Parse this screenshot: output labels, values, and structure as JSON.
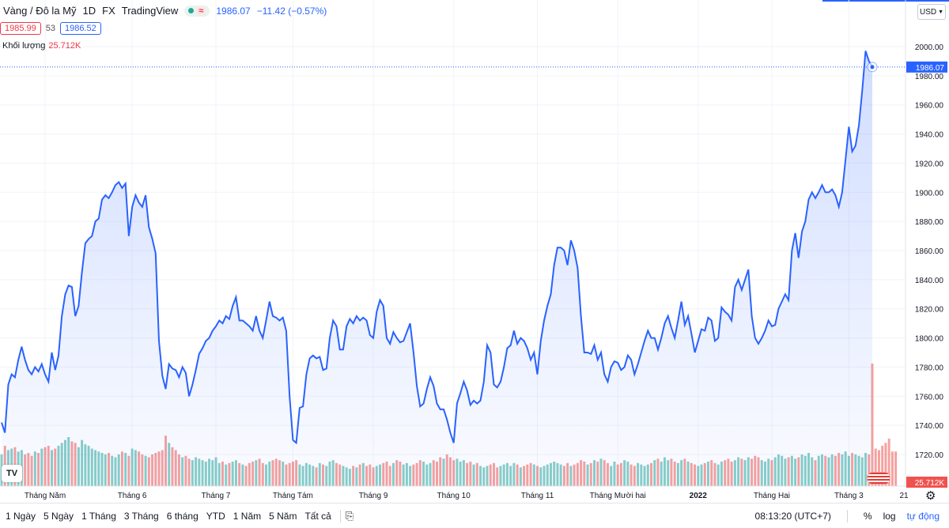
{
  "legend": {
    "symbol": "Vàng / Đô la Mỹ",
    "interval": "1D",
    "exchange": "FX",
    "source": "TradingView",
    "approx_symbol": "≈",
    "last_price": "1986.07",
    "change": "−11.42 (−0.57%)"
  },
  "quotes": {
    "bid": "1985.99",
    "spread": "53",
    "ask": "1986.52"
  },
  "volume": {
    "label": "Khối lượng",
    "value": "25.712K"
  },
  "currency": "USD",
  "logo_text": "TV",
  "bottom": {
    "ranges": [
      "1 Ngày",
      "5 Ngày",
      "1 Tháng",
      "3 Tháng",
      "6 tháng",
      "YTD",
      "1 Năm",
      "5 Năm",
      "Tất cả"
    ],
    "time": "08:13:20 (UTC+7)",
    "percent": "%",
    "log": "log",
    "auto": "tự động"
  },
  "colors": {
    "line": "#2962ff",
    "up": "#26a69a",
    "down": "#ef5350",
    "grid": "#f0f3fa"
  },
  "chart_data": {
    "type": "area",
    "title": "",
    "ylim": [
      1720,
      2020
    ],
    "yticks": [
      1720,
      1740,
      1760,
      1780,
      1800,
      1820,
      1840,
      1860,
      1880,
      1900,
      1920,
      1940,
      1960,
      1980,
      2000
    ],
    "last_price_label": "1986.07",
    "volume_label": "25.712K",
    "xtick_labels": [
      "Tháng Năm",
      "Tháng 6",
      "Tháng 7",
      "Tháng Tám",
      "Tháng 9",
      "Tháng 10",
      "Tháng 11",
      "Tháng Mười hai",
      "2022",
      "Tháng Hai",
      "Tháng 3",
      "21"
    ],
    "xtick_index": [
      13,
      39,
      64,
      87,
      111,
      135,
      160,
      184,
      208,
      230,
      253,
      272
    ],
    "series": [
      {
        "values": [
          1742,
          1735,
          1768,
          1775,
          1773,
          1785,
          1794,
          1785,
          1778,
          1775,
          1780,
          1777,
          1782,
          1775,
          1770,
          1790,
          1778,
          1788,
          1815,
          1830,
          1836,
          1835,
          1815,
          1822,
          1845,
          1865,
          1868,
          1870,
          1880,
          1882,
          1895,
          1898,
          1896,
          1900,
          1905,
          1907,
          1903,
          1906,
          1870,
          1890,
          1898,
          1893,
          1890,
          1898,
          1876,
          1868,
          1858,
          1798,
          1774,
          1765,
          1782,
          1779,
          1778,
          1773,
          1780,
          1776,
          1760,
          1768,
          1778,
          1789,
          1793,
          1798,
          1800,
          1805,
          1808,
          1812,
          1810,
          1815,
          1813,
          1822,
          1828,
          1812,
          1812,
          1810,
          1808,
          1805,
          1815,
          1805,
          1800,
          1812,
          1825,
          1815,
          1814,
          1812,
          1814,
          1805,
          1760,
          1730,
          1728,
          1752,
          1753,
          1775,
          1786,
          1788,
          1786,
          1787,
          1778,
          1779,
          1800,
          1812,
          1808,
          1792,
          1792,
          1808,
          1813,
          1810,
          1815,
          1812,
          1814,
          1812,
          1802,
          1800,
          1818,
          1826,
          1822,
          1800,
          1796,
          1804,
          1800,
          1797,
          1798,
          1804,
          1810,
          1790,
          1767,
          1753,
          1755,
          1765,
          1773,
          1767,
          1755,
          1751,
          1751,
          1744,
          1735,
          1728,
          1755,
          1762,
          1770,
          1764,
          1754,
          1757,
          1755,
          1757,
          1770,
          1795,
          1790,
          1768,
          1766,
          1770,
          1780,
          1793,
          1795,
          1805,
          1796,
          1800,
          1798,
          1793,
          1785,
          1790,
          1775,
          1798,
          1812,
          1822,
          1830,
          1850,
          1862,
          1862,
          1860,
          1850,
          1867,
          1860,
          1848,
          1815,
          1790,
          1790,
          1789,
          1795,
          1785,
          1790,
          1775,
          1770,
          1780,
          1784,
          1783,
          1778,
          1780,
          1788,
          1785,
          1775,
          1782,
          1790,
          1798,
          1805,
          1800,
          1800,
          1792,
          1800,
          1810,
          1815,
          1807,
          1800,
          1812,
          1825,
          1809,
          1815,
          1803,
          1790,
          1798,
          1806,
          1805,
          1814,
          1812,
          1798,
          1800,
          1821,
          1818,
          1816,
          1812,
          1835,
          1840,
          1833,
          1840,
          1847,
          1815,
          1800,
          1796,
          1800,
          1805,
          1812,
          1808,
          1809,
          1820,
          1825,
          1830,
          1826,
          1860,
          1872,
          1855,
          1873,
          1880,
          1895,
          1900,
          1896,
          1900,
          1905,
          1900,
          1900,
          1902,
          1898,
          1890,
          1900,
          1922,
          1945,
          1928,
          1932,
          1946,
          1970,
          1997,
          1990,
          1986
        ]
      }
    ],
    "volume_values": [
      22,
      28,
      25,
      26,
      27,
      24,
      25,
      22,
      23,
      21,
      24,
      23,
      26,
      27,
      28,
      25,
      26,
      28,
      30,
      32,
      34,
      31,
      30,
      27,
      32,
      29,
      28,
      26,
      25,
      24,
      23,
      22,
      23,
      21,
      20,
      22,
      24,
      23,
      21,
      26,
      25,
      24,
      22,
      21,
      20,
      22,
      23,
      24,
      25,
      35,
      30,
      27,
      25,
      22,
      20,
      21,
      19,
      18,
      20,
      19,
      18,
      17,
      19,
      18,
      20,
      16,
      17,
      15,
      16,
      17,
      18,
      16,
      15,
      14,
      16,
      17,
      18,
      19,
      16,
      15,
      17,
      18,
      19,
      18,
      17,
      15,
      16,
      17,
      18,
      15,
      14,
      16,
      15,
      14,
      13,
      16,
      15,
      14,
      17,
      18,
      16,
      15,
      14,
      13,
      12,
      14,
      13,
      15,
      16,
      14,
      15,
      13,
      14,
      15,
      16,
      17,
      14,
      16,
      18,
      17,
      15,
      16,
      14,
      15,
      16,
      18,
      17,
      15,
      16,
      18,
      17,
      20,
      19,
      22,
      20,
      18,
      19,
      17,
      18,
      16,
      17,
      15,
      16,
      14,
      13,
      14,
      15,
      16,
      13,
      14,
      15,
      16,
      14,
      16,
      15,
      13,
      14,
      15,
      16,
      15,
      14,
      13,
      14,
      15,
      16,
      17,
      16,
      15,
      14,
      16,
      14,
      15,
      16,
      18,
      17,
      15,
      16,
      18,
      17,
      19,
      18,
      16,
      14,
      17,
      15,
      16,
      18,
      17,
      15,
      14,
      16,
      15,
      14,
      15,
      16,
      18,
      19,
      17,
      20,
      18,
      19,
      17,
      16,
      18,
      19,
      17,
      16,
      15,
      14,
      15,
      16,
      17,
      18,
      16,
      15,
      17,
      18,
      19,
      17,
      18,
      20,
      19,
      18,
      20,
      19,
      21,
      20,
      18,
      17,
      19,
      18,
      20,
      22,
      21,
      19,
      20,
      21,
      19,
      20,
      22,
      21,
      23,
      20,
      18,
      21,
      22,
      21,
      20,
      22,
      21,
      23,
      22,
      24,
      21,
      23,
      22,
      21,
      20,
      23,
      22,
      85,
      26,
      25,
      28,
      30,
      33,
      24,
      24
    ]
  }
}
